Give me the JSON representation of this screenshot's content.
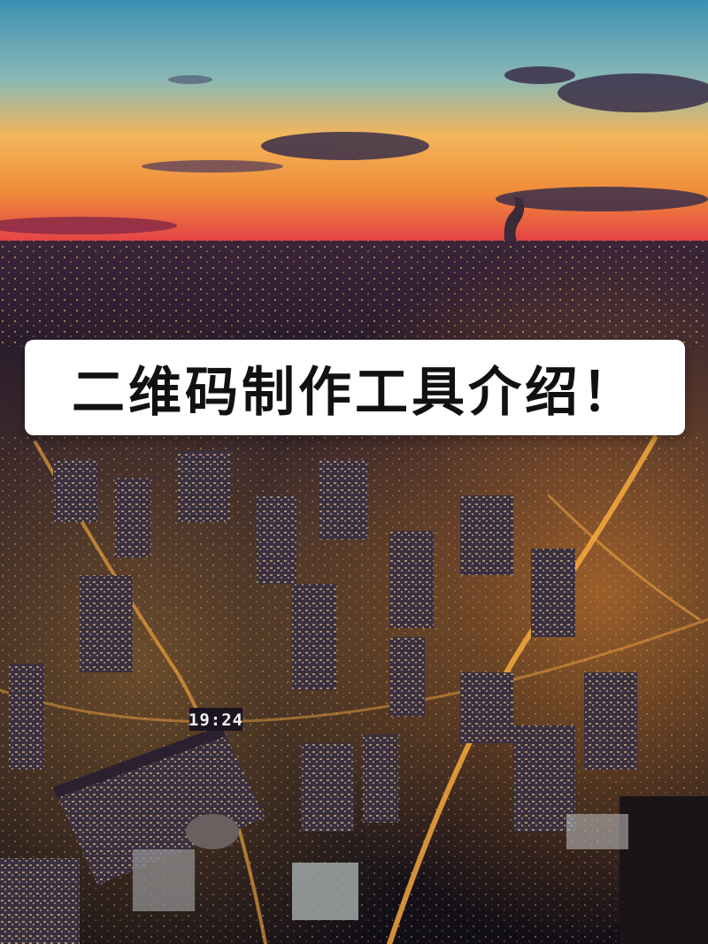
{
  "title": "二维码制作工具介绍！",
  "building_sign": "19:24",
  "scene": {
    "description_colors": {
      "sky_top": "#3f8fb0",
      "sky_mid": "#f0a048",
      "horizon": "#e8383c",
      "city_lights": "#ffb347",
      "night_base": "#140f1c"
    }
  }
}
